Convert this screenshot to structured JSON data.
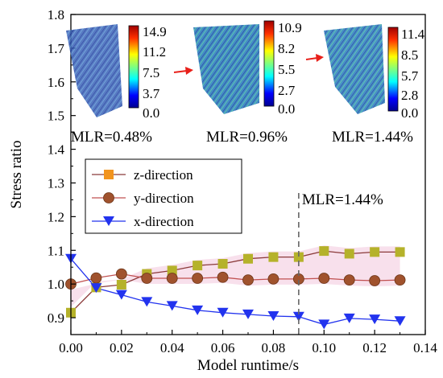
{
  "chart_data": {
    "type": "line",
    "xlabel": "Model runtime/s",
    "ylabel": "Stress ratio",
    "xlim": [
      0.0,
      0.14
    ],
    "ylim": [
      0.85,
      1.8
    ],
    "x_ticks": [
      "0.00",
      "0.02",
      "0.04",
      "0.06",
      "0.08",
      "0.10",
      "0.12",
      "0.14"
    ],
    "y_ticks": [
      "0.9",
      "1.0",
      "1.1",
      "1.2",
      "1.3",
      "1.4",
      "1.5",
      "1.6",
      "1.7",
      "1.8"
    ],
    "legend_position": "left-middle",
    "series": [
      {
        "name": "z-direction",
        "color": "#b5b22a",
        "line_color": "#8b3a3a",
        "marker": "square",
        "x": [
          0.0,
          0.01,
          0.02,
          0.03,
          0.04,
          0.05,
          0.06,
          0.07,
          0.08,
          0.09,
          0.1,
          0.11,
          0.12,
          0.13
        ],
        "y": [
          0.915,
          0.99,
          0.998,
          1.03,
          1.04,
          1.055,
          1.06,
          1.075,
          1.08,
          1.08,
          1.098,
          1.09,
          1.095,
          1.095
        ]
      },
      {
        "name": "y-direction",
        "color": "#a0522d",
        "line_color": "#c05050",
        "marker": "circle",
        "x": [
          0.0,
          0.01,
          0.02,
          0.03,
          0.04,
          0.05,
          0.06,
          0.07,
          0.08,
          0.09,
          0.1,
          0.11,
          0.12,
          0.13
        ],
        "y": [
          1.0,
          1.018,
          1.03,
          1.017,
          1.017,
          1.017,
          1.02,
          1.012,
          1.015,
          1.015,
          1.017,
          1.012,
          1.01,
          1.012
        ]
      },
      {
        "name": "x-direction",
        "color": "#2233ee",
        "line_color": "#2233ee",
        "marker": "triangle-down",
        "x": [
          0.0,
          0.01,
          0.02,
          0.03,
          0.04,
          0.05,
          0.06,
          0.07,
          0.08,
          0.09,
          0.1,
          0.11,
          0.12,
          0.13
        ],
        "y": [
          1.075,
          0.988,
          0.968,
          0.947,
          0.935,
          0.922,
          0.915,
          0.91,
          0.905,
          0.903,
          0.88,
          0.898,
          0.895,
          0.89
        ]
      }
    ],
    "highlight_band_color": "#f6d6e6",
    "annotation": {
      "text": "MLR=1.44%",
      "x": 0.09
    },
    "insets": [
      {
        "label": "MLR=0.48%",
        "colorbar_ticks": [
          "14.9",
          "11.2",
          "7.5",
          "3.7",
          "0.0"
        ]
      },
      {
        "label": "MLR=0.96%",
        "colorbar_ticks": [
          "10.9",
          "8.2",
          "5.5",
          "2.7",
          "0.0"
        ]
      },
      {
        "label": "MLR=1.44%",
        "colorbar_ticks": [
          "11.4",
          "8.5",
          "5.7",
          "2.8",
          "0.0"
        ]
      }
    ]
  }
}
